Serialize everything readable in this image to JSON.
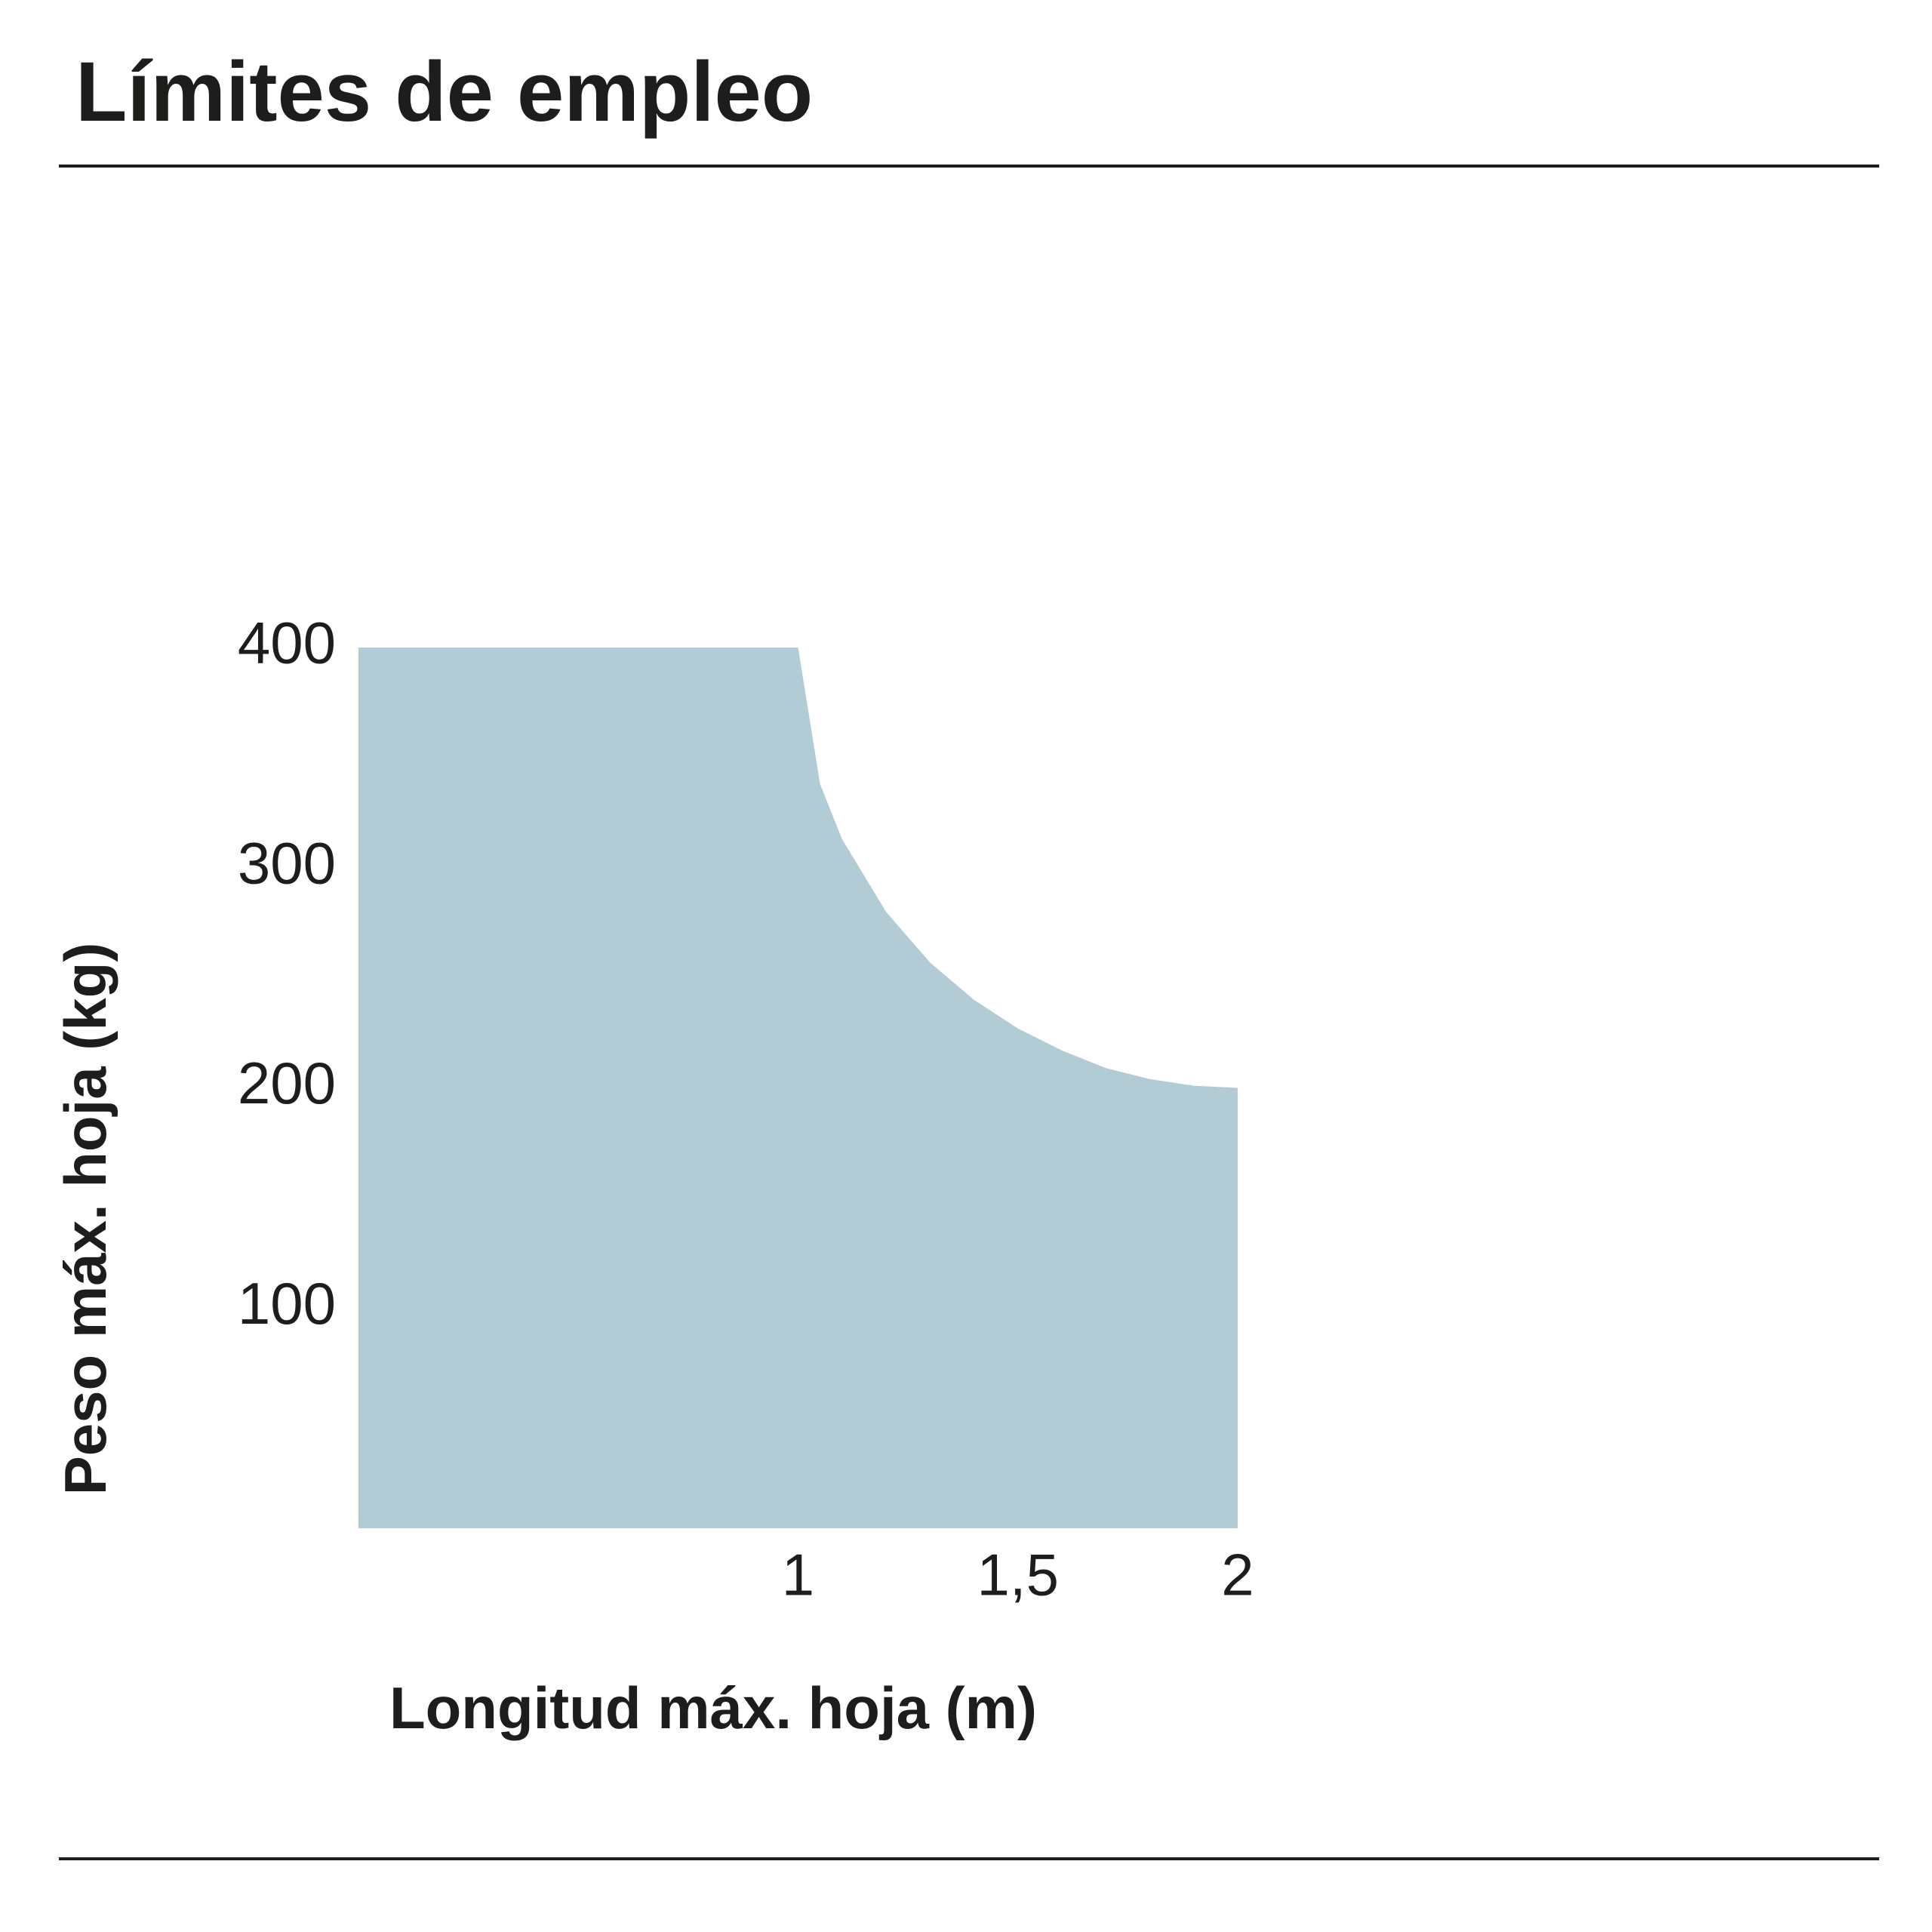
{
  "chart_data": {
    "type": "area",
    "title": "Límites de empleo",
    "x_label": "Longitud máx. hoja (m)",
    "y_label": "Peso máx. hoja (kg)",
    "x": [
      0,
      1,
      1.05,
      1.1,
      1.2,
      1.3,
      1.4,
      1.5,
      1.6,
      1.7,
      1.8,
      1.9,
      2
    ],
    "values": [
      400,
      400,
      338,
      313,
      280,
      257,
      240,
      227,
      217,
      209,
      204,
      201,
      200
    ],
    "color": "#b3cbd5",
    "xlim": [
      0,
      2
    ],
    "xticks": [
      1,
      {
        "value": 1.5,
        "label": "1,5"
      },
      2
    ],
    "ylim": [
      0,
      400
    ],
    "yticks": [
      100,
      200,
      300,
      400
    ],
    "grid": false
  }
}
